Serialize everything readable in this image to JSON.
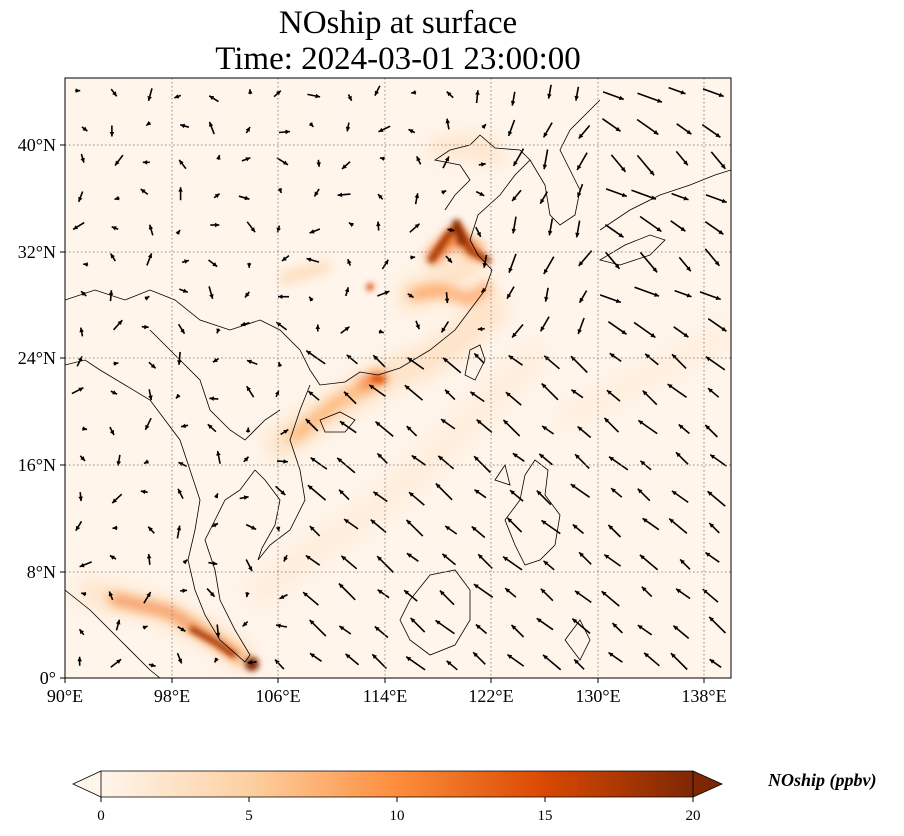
{
  "title": {
    "line1": "NOship at surface",
    "line2": "Time: 2024-03-01 23:00:00"
  },
  "map": {
    "lon_range": [
      90,
      140
    ],
    "lat_range": [
      0,
      45
    ],
    "x_ticks": [
      "90°E",
      "98°E",
      "106°E",
      "114°E",
      "122°E",
      "130°E",
      "138°E"
    ],
    "y_ticks": [
      "0°",
      "8°N",
      "16°N",
      "24°N",
      "32°N",
      "40°N"
    ],
    "gridlines": true
  },
  "colorbar": {
    "label": "NOship (ppbv)",
    "ticks": [
      "0",
      "5",
      "10",
      "15",
      "20"
    ],
    "range": [
      0,
      20
    ],
    "extend": "both",
    "colors": [
      "#fff5eb",
      "#fdd0a2",
      "#fd8d3c",
      "#d94801",
      "#7f2704"
    ]
  },
  "colors": {
    "background_field": "#fff5eb",
    "coastline": "#000000",
    "arrows": "#000000",
    "grid": "#808080"
  }
}
